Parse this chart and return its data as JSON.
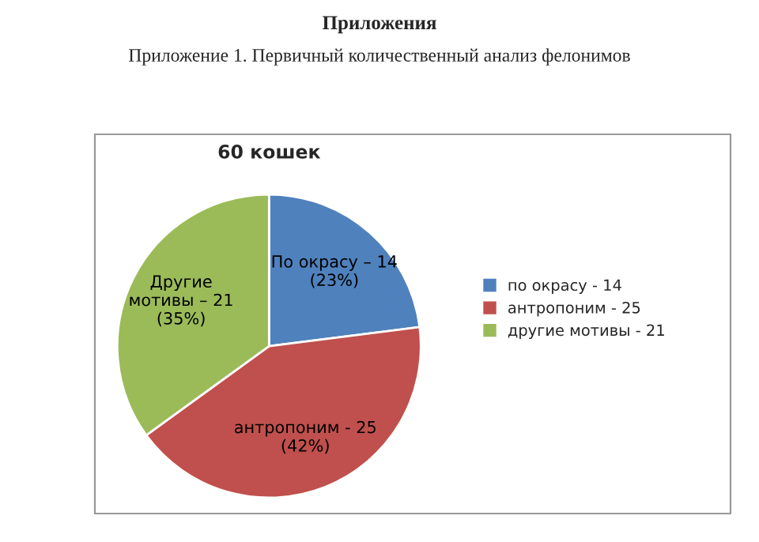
{
  "chart_data": {
    "type": "pie",
    "title": "60 кошек",
    "annotations": [
      "Приложения",
      "Приложение 1. Первичный количественный анализ фелонимов"
    ],
    "categories": [
      "по окрасу - 14",
      "антропоним - 25",
      "другие мотивы - 21"
    ],
    "values": [
      23,
      42,
      35
    ],
    "colors": [
      "#4f81bd",
      "#c0504d",
      "#9bbb59"
    ],
    "value_labels": [
      "По окрасу – 14\n(23%)",
      "антропоним - 25\n(42%)",
      "Другие\nмотивы – 21\n(35%)"
    ],
    "legend": "right"
  }
}
